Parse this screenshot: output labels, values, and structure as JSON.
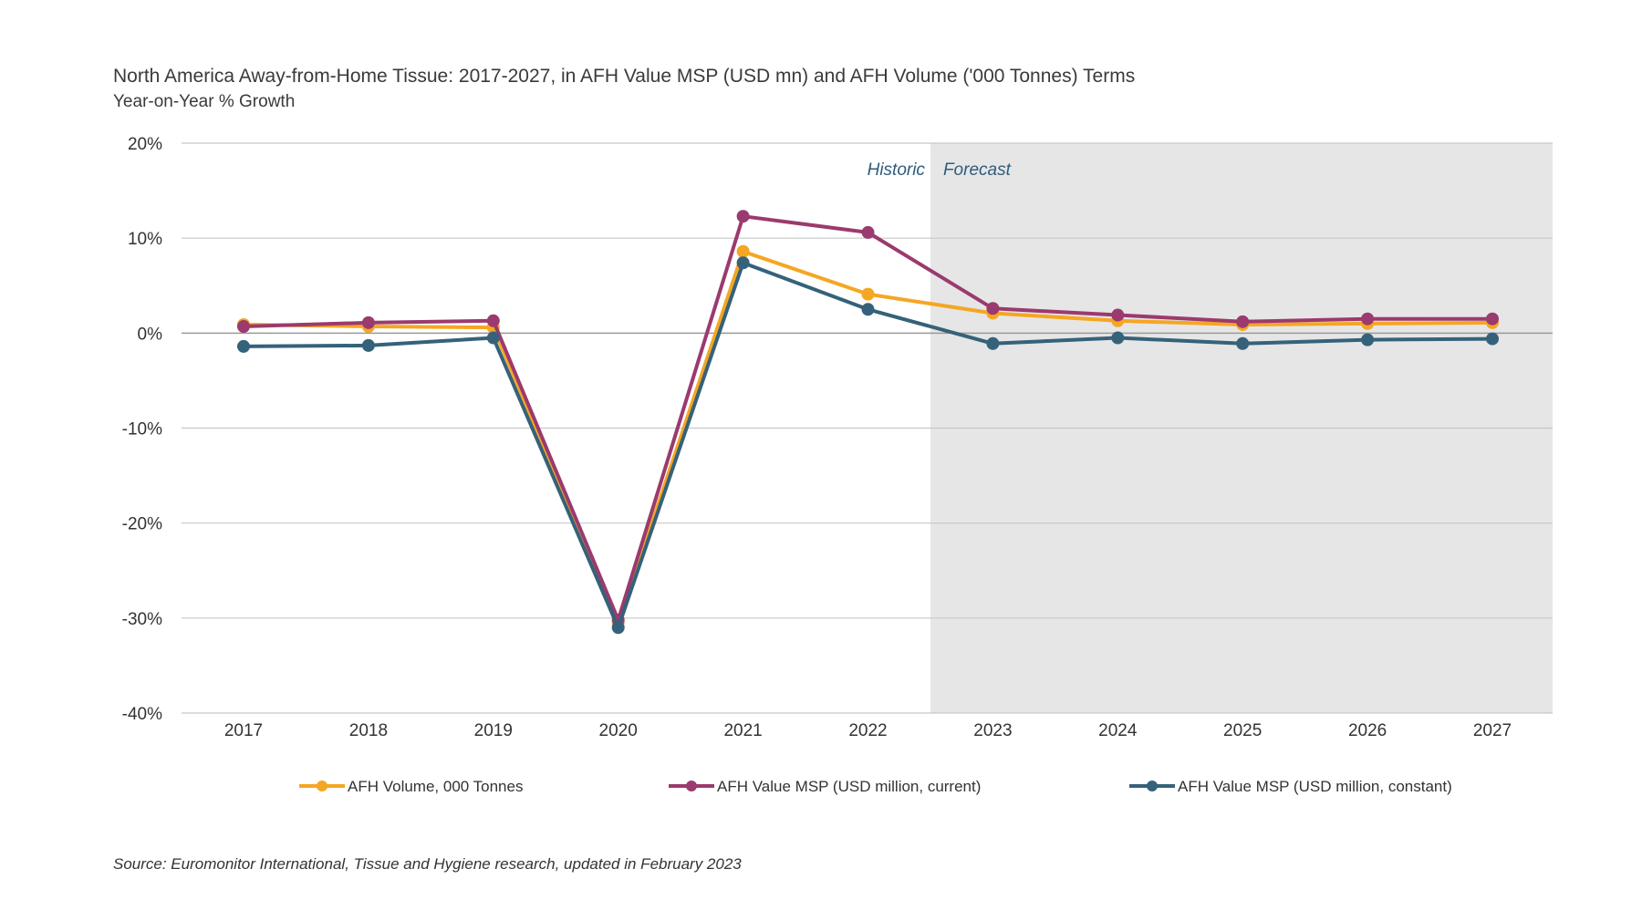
{
  "header": {
    "title": "North America Away-from-Home Tissue: 2017-2027, in AFH Value MSP (USD mn) and AFH Volume ('000 Tonnes) Terms",
    "subtitle": "Year-on-Year % Growth"
  },
  "footer": {
    "source": "Source: Euromonitor International, Tissue and Hygiene research, updated in February 2023"
  },
  "chart_data": {
    "type": "line",
    "title": "North America Away-from-Home Tissue: 2017-2027, in AFH Value MSP (USD mn) and AFH Volume ('000 Tonnes) Terms",
    "subtitle": "Year-on-Year % Growth",
    "x": [
      "2017",
      "2018",
      "2019",
      "2020",
      "2021",
      "2022",
      "2023",
      "2024",
      "2025",
      "2026",
      "2027"
    ],
    "ylim": [
      -40,
      20
    ],
    "yticks": [
      20,
      10,
      0,
      -10,
      -20,
      -30,
      -40
    ],
    "ytick_labels": [
      "20%",
      "10%",
      "0%",
      "-10%",
      "-20%",
      "-30%",
      "-40%"
    ],
    "grid": "horizontal",
    "legend_position": "bottom",
    "forecast_shading_start": "2023",
    "annotations": {
      "historic": "Historic",
      "forecast": "Forecast"
    },
    "series": [
      {
        "name": "AFH Volume, 000 Tonnes",
        "color": "#f5a623",
        "values": [
          0.9,
          0.7,
          0.6,
          -30.5,
          8.6,
          4.1,
          2.1,
          1.3,
          0.9,
          1.0,
          1.1
        ]
      },
      {
        "name": "AFH Value MSP (USD million, current)",
        "color": "#9b3a6e",
        "values": [
          0.7,
          1.1,
          1.3,
          -30.2,
          12.3,
          10.6,
          2.6,
          1.9,
          1.2,
          1.5,
          1.5
        ]
      },
      {
        "name": "AFH Value MSP (USD million, constant)",
        "color": "#35627a",
        "values": [
          -1.4,
          -1.3,
          -0.5,
          -31.0,
          7.4,
          2.5,
          -1.1,
          -0.5,
          -1.1,
          -0.7,
          -0.6
        ]
      }
    ]
  }
}
